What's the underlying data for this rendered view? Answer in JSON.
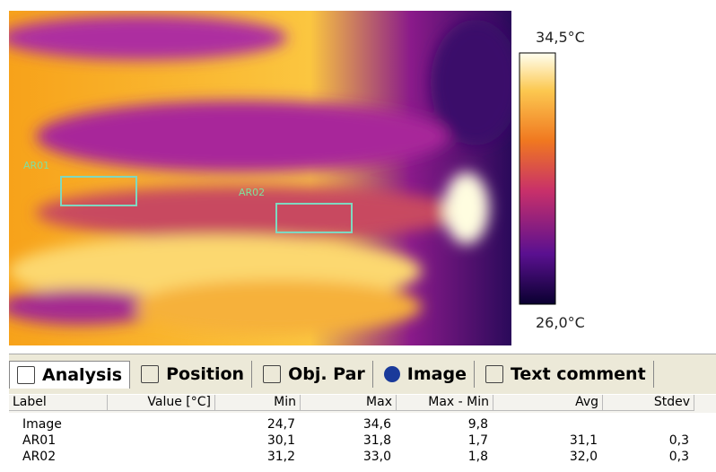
{
  "image": {
    "regions": [
      {
        "label": "AR01"
      },
      {
        "label": "AR02"
      }
    ],
    "scale": {
      "max_label": "34,5°C",
      "min_label": "26,0°C"
    }
  },
  "tabs": [
    "Analysis",
    "Position",
    "Obj. Par",
    "Image",
    "Text comment"
  ],
  "table": {
    "columns": [
      "Label",
      "Value [°C]",
      "Min",
      "Max",
      "Max - Min",
      "Avg",
      "Stdev"
    ],
    "rows": [
      {
        "label": "Image",
        "min": "24,7",
        "max": "34,6",
        "range": "9,8"
      },
      {
        "label": "AR01",
        "min": "30,1",
        "max": "31,8",
        "range": "1,7",
        "avg": "31,1",
        "stdev": "0,3"
      },
      {
        "label": "AR02",
        "min": "31,2",
        "max": "33,0",
        "range": "1,8",
        "avg": "32,0",
        "stdev": "0,3"
      }
    ]
  }
}
